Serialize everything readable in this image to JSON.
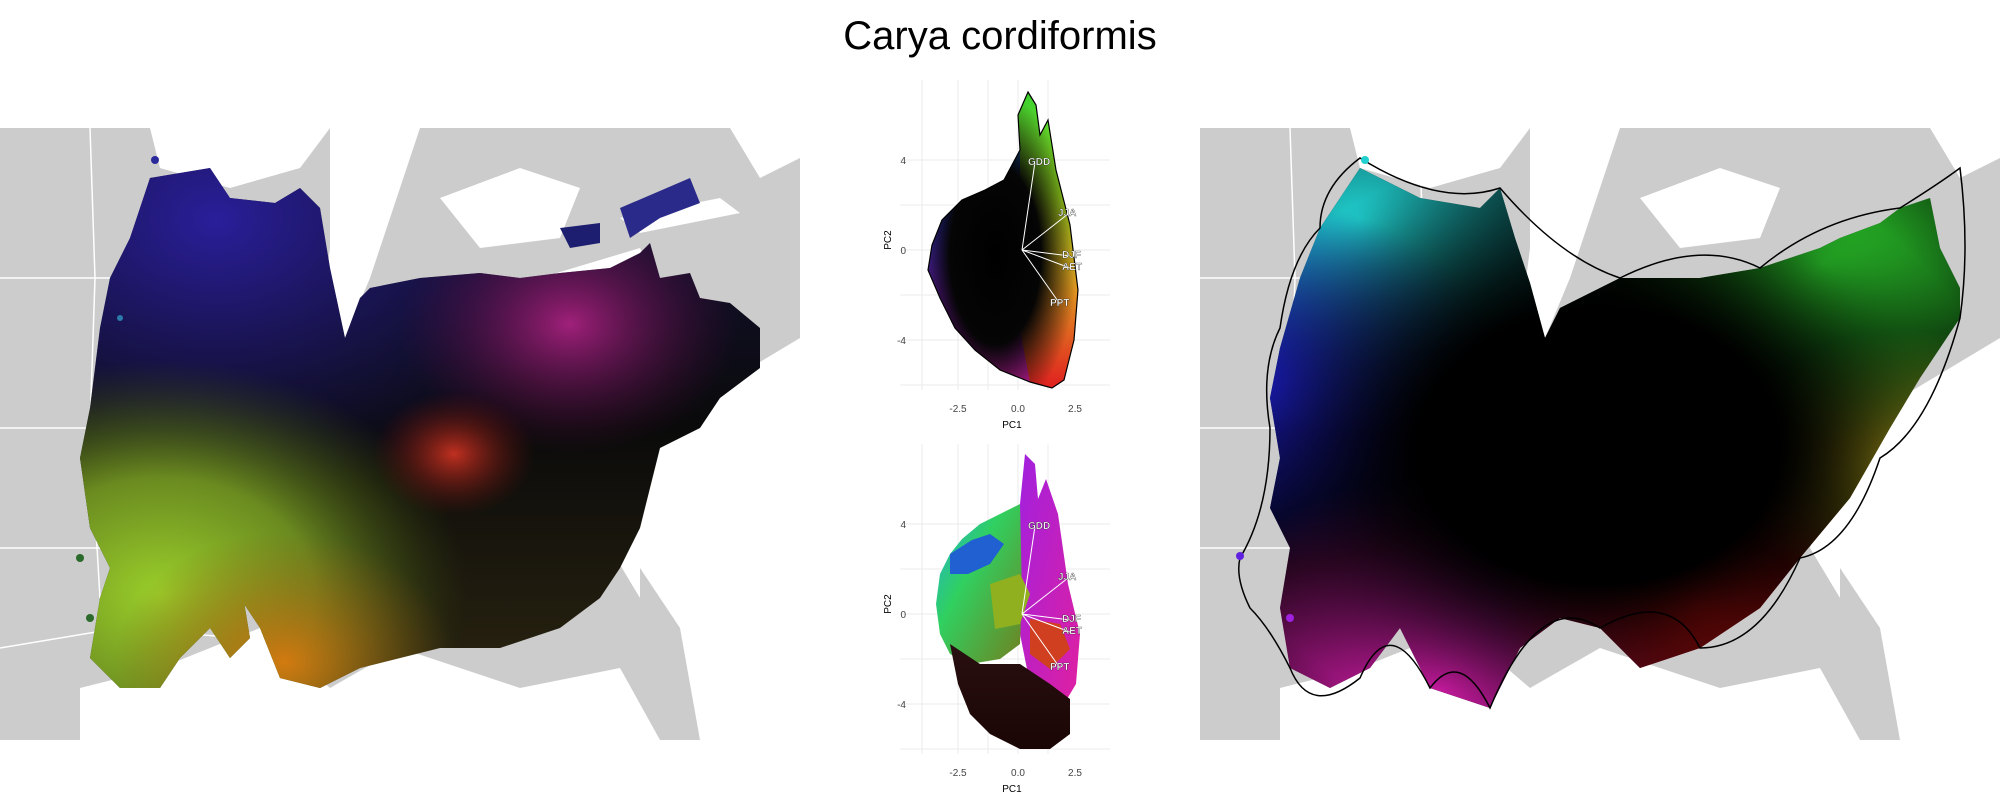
{
  "title": "Carya cordiformis",
  "colors": {
    "land": "#cccccc",
    "water": "#ffffff",
    "border": "#ffffff",
    "grid": "#ebebeb",
    "hull": "#000000"
  },
  "pca_plots": [
    {
      "id": "top",
      "xlabel": "PC1",
      "ylabel": "PC2",
      "xticks": [
        "-2.5",
        "0.0",
        "2.5"
      ],
      "yticks": [
        "4",
        "0",
        "-4"
      ],
      "vectors": [
        "GDD",
        "JJA",
        "DJF",
        "AET",
        "PPT"
      ]
    },
    {
      "id": "bottom",
      "xlabel": "PC1",
      "ylabel": "PC2",
      "xticks": [
        "-2.5",
        "0.0",
        "2.5"
      ],
      "yticks": [
        "4",
        "0",
        "-4"
      ],
      "vectors": [
        "GDD",
        "JJA",
        "DJF",
        "AET",
        "PPT"
      ]
    }
  ]
}
